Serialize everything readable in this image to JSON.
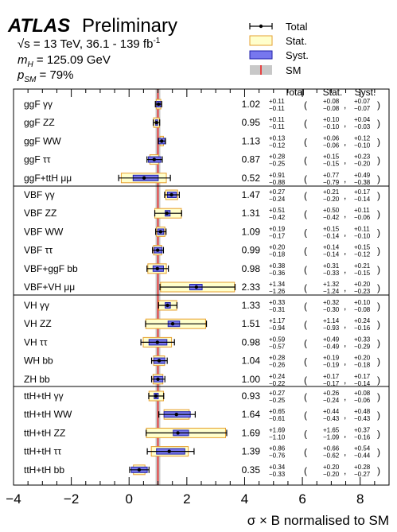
{
  "chart_data": {
    "type": "forest",
    "experiment": "ATLAS",
    "status": "Preliminary",
    "info_lines": [
      "√s = 13 TeV, 36.1 - 139 fb⁻¹",
      "mH = 125.09 GeV",
      "pSM = 79%"
    ],
    "legend": [
      "Total",
      "Stat.",
      "Syst.",
      "SM"
    ],
    "column_headers": [
      "Total",
      "Stat.",
      "Syst."
    ],
    "xlabel": "σ × B normalised to SM",
    "xlim": [
      -4,
      9
    ],
    "xticks": [
      "−4",
      "−2",
      "0",
      "2",
      "4",
      "6",
      "8"
    ],
    "sm_value": 1,
    "colors": {
      "stat_fill": "#ffffcc",
      "stat_edge": "#e6a030",
      "syst_fill": "#7777ee",
      "syst_edge": "#2222aa",
      "sm_line": "#ee2222",
      "sm_band": "#c8c8c8"
    },
    "groups": [
      {
        "rows": [
          {
            "label": "ggF γγ",
            "value": "1.02",
            "tot_up": "+0.11",
            "tot_dn": "−0.11",
            "stat_up": "+0.08",
            "stat_dn": "−0.08",
            "syst_up": "+0.07",
            "syst_dn": "−0.07"
          },
          {
            "label": "ggF ZZ",
            "value": "0.95",
            "tot_up": "+0.11",
            "tot_dn": "−0.11",
            "stat_up": "+0.10",
            "stat_dn": "−0.10",
            "syst_up": "+0.04",
            "syst_dn": "−0.03"
          },
          {
            "label": "ggF WW",
            "value": "1.13",
            "tot_up": "+0.13",
            "tot_dn": "−0.12",
            "stat_up": "+0.06",
            "stat_dn": "−0.06",
            "syst_up": "+0.12",
            "syst_dn": "−0.10"
          },
          {
            "label": "ggF ττ",
            "value": "0.87",
            "tot_up": "+0.28",
            "tot_dn": "−0.25",
            "stat_up": "+0.15",
            "stat_dn": "−0.15",
            "syst_up": "+0.23",
            "syst_dn": "−0.20"
          },
          {
            "label": "ggF+ttH μμ",
            "value": "0.52",
            "tot_up": "+0.91",
            "tot_dn": "−0.88",
            "stat_up": "+0.77",
            "stat_dn": "−0.79",
            "syst_up": "+0.49",
            "syst_dn": "−0.38"
          }
        ]
      },
      {
        "rows": [
          {
            "label": "VBF γγ",
            "value": "1.47",
            "tot_up": "+0.27",
            "tot_dn": "−0.24",
            "stat_up": "+0.21",
            "stat_dn": "−0.20",
            "syst_up": "+0.17",
            "syst_dn": "−0.14"
          },
          {
            "label": "VBF ZZ",
            "value": "1.31",
            "tot_up": "+0.51",
            "tot_dn": "−0.42",
            "stat_up": "+0.50",
            "stat_dn": "−0.42",
            "syst_up": "+0.11",
            "syst_dn": "−0.06"
          },
          {
            "label": "VBF WW",
            "value": "1.09",
            "tot_up": "+0.19",
            "tot_dn": "−0.17",
            "stat_up": "+0.15",
            "stat_dn": "−0.14",
            "syst_up": "+0.11",
            "syst_dn": "−0.10"
          },
          {
            "label": "VBF ττ",
            "value": "0.99",
            "tot_up": "+0.20",
            "tot_dn": "−0.18",
            "stat_up": "+0.14",
            "stat_dn": "−0.14",
            "syst_up": "+0.15",
            "syst_dn": "−0.12"
          },
          {
            "label": "VBF+ggF bb",
            "value": "0.98",
            "tot_up": "+0.38",
            "tot_dn": "−0.36",
            "stat_up": "+0.31",
            "stat_dn": "−0.33",
            "syst_up": "+0.21",
            "syst_dn": "−0.15"
          },
          {
            "label": "VBF+VH μμ",
            "value": "2.33",
            "tot_up": "+1.34",
            "tot_dn": "−1.26",
            "stat_up": "+1.32",
            "stat_dn": "−1.24",
            "syst_up": "+0.20",
            "syst_dn": "−0.23"
          }
        ]
      },
      {
        "rows": [
          {
            "label": "VH γγ",
            "value": "1.33",
            "tot_up": "+0.33",
            "tot_dn": "−0.31",
            "stat_up": "+0.32",
            "stat_dn": "−0.30",
            "syst_up": "+0.10",
            "syst_dn": "−0.08"
          },
          {
            "label": "VH ZZ",
            "value": "1.51",
            "tot_up": "+1.17",
            "tot_dn": "−0.94",
            "stat_up": "+1.14",
            "stat_dn": "−0.93",
            "syst_up": "+0.24",
            "syst_dn": "−0.16"
          },
          {
            "label": "VH ττ",
            "value": "0.98",
            "tot_up": "+0.59",
            "tot_dn": "−0.57",
            "stat_up": "+0.49",
            "stat_dn": "−0.49",
            "syst_up": "+0.33",
            "syst_dn": "−0.29"
          },
          {
            "label": "WH bb",
            "value": "1.04",
            "tot_up": "+0.28",
            "tot_dn": "−0.26",
            "stat_up": "+0.19",
            "stat_dn": "−0.19",
            "syst_up": "+0.20",
            "syst_dn": "−0.18"
          },
          {
            "label": "ZH bb",
            "value": "1.00",
            "tot_up": "+0.24",
            "tot_dn": "−0.22",
            "stat_up": "+0.17",
            "stat_dn": "−0.17",
            "syst_up": "+0.17",
            "syst_dn": "−0.14"
          }
        ]
      },
      {
        "rows": [
          {
            "label": "ttH+tH γγ",
            "value": "0.93",
            "tot_up": "+0.27",
            "tot_dn": "−0.25",
            "stat_up": "+0.26",
            "stat_dn": "−0.24",
            "syst_up": "+0.08",
            "syst_dn": "−0.06"
          },
          {
            "label": "ttH+tH WW",
            "value": "1.64",
            "tot_up": "+0.65",
            "tot_dn": "−0.61",
            "stat_up": "+0.44",
            "stat_dn": "−0.43",
            "syst_up": "+0.48",
            "syst_dn": "−0.43"
          },
          {
            "label": "ttH+tH ZZ",
            "value": "1.69",
            "tot_up": "+1.69",
            "tot_dn": "−1.10",
            "stat_up": "+1.65",
            "stat_dn": "−1.09",
            "syst_up": "+0.37",
            "syst_dn": "−0.16"
          },
          {
            "label": "ttH+tH ττ",
            "value": "1.39",
            "tot_up": "+0.86",
            "tot_dn": "−0.76",
            "stat_up": "+0.66",
            "stat_dn": "−0.62",
            "syst_up": "+0.54",
            "syst_dn": "−0.44"
          },
          {
            "label": "ttH+tH bb",
            "value": "0.35",
            "tot_up": "+0.34",
            "tot_dn": "−0.33",
            "stat_up": "+0.20",
            "stat_dn": "−0.20",
            "syst_up": "+0.28",
            "syst_dn": "−0.27"
          }
        ]
      }
    ]
  }
}
